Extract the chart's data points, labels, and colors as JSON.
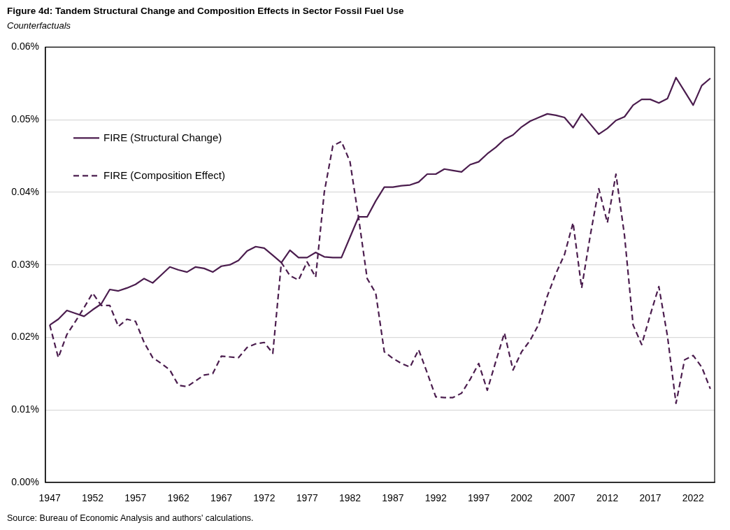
{
  "chart_data": {
    "type": "line",
    "title": "Figure 4d: Tandem Structural Change and Composition Effects in Sector Fossil Fuel Use",
    "subtitle": "Counterfactuals",
    "annotations": [
      "Source: Bureau of Economic Analysis and authors' calculations."
    ],
    "x": [
      1947,
      1948,
      1949,
      1950,
      1951,
      1952,
      1953,
      1954,
      1955,
      1956,
      1957,
      1958,
      1959,
      1960,
      1961,
      1962,
      1963,
      1964,
      1965,
      1966,
      1967,
      1968,
      1969,
      1970,
      1971,
      1972,
      1973,
      1974,
      1975,
      1976,
      1977,
      1978,
      1979,
      1980,
      1981,
      1982,
      1983,
      1984,
      1985,
      1986,
      1987,
      1988,
      1989,
      1990,
      1991,
      1992,
      1993,
      1994,
      1995,
      1996,
      1997,
      1998,
      1999,
      2000,
      2001,
      2002,
      2003,
      2004,
      2005,
      2006,
      2007,
      2008,
      2009,
      2010,
      2011,
      2012,
      2013,
      2014,
      2015,
      2016,
      2017,
      2018,
      2019,
      2020,
      2021,
      2022,
      2023,
      2024
    ],
    "series": [
      {
        "name": "FIRE (Structural Change)",
        "color": "#4b1d4e",
        "line_style": "solid",
        "values": [
          0.0217,
          0.0225,
          0.0237,
          0.0233,
          0.0229,
          0.0238,
          0.0246,
          0.0266,
          0.0264,
          0.0268,
          0.0273,
          0.0281,
          0.0275,
          0.0286,
          0.0297,
          0.0293,
          0.029,
          0.0297,
          0.0295,
          0.029,
          0.0298,
          0.03,
          0.0306,
          0.0319,
          0.0325,
          0.0323,
          0.0313,
          0.0303,
          0.032,
          0.031,
          0.031,
          0.0317,
          0.0311,
          0.031,
          0.031,
          0.0338,
          0.0366,
          0.0366,
          0.0388,
          0.0407,
          0.0407,
          0.0409,
          0.041,
          0.0414,
          0.0425,
          0.0425,
          0.0432,
          0.043,
          0.0428,
          0.0438,
          0.0442,
          0.0453,
          0.0462,
          0.0473,
          0.0479,
          0.049,
          0.0498,
          0.0503,
          0.0508,
          0.0506,
          0.0503,
          0.0489,
          0.0508,
          0.0494,
          0.048,
          0.0488,
          0.0499,
          0.0504,
          0.052,
          0.0528,
          0.0528,
          0.0523,
          0.0529,
          0.0558,
          0.0539,
          0.052,
          0.0547,
          0.0557
        ]
      },
      {
        "name": "FIRE (Composition Effect)",
        "color": "#4b1d4e",
        "line_style": "dashed",
        "values": [
          0.0217,
          0.0172,
          0.0204,
          0.0222,
          0.0241,
          0.0261,
          0.0244,
          0.0244,
          0.0215,
          0.0225,
          0.0222,
          0.0193,
          0.0172,
          0.0164,
          0.0155,
          0.0134,
          0.0132,
          0.014,
          0.0148,
          0.015,
          0.0174,
          0.0173,
          0.0172,
          0.0186,
          0.0191,
          0.0193,
          0.0178,
          0.0303,
          0.0285,
          0.0279,
          0.0304,
          0.0283,
          0.04,
          0.0464,
          0.047,
          0.0442,
          0.0365,
          0.0281,
          0.0261,
          0.018,
          0.0171,
          0.0164,
          0.0159,
          0.0183,
          0.0151,
          0.0118,
          0.0117,
          0.0117,
          0.0123,
          0.0142,
          0.0164,
          0.0127,
          0.0167,
          0.0206,
          0.0155,
          0.018,
          0.0196,
          0.0218,
          0.0257,
          0.0288,
          0.0314,
          0.0358,
          0.0268,
          0.034,
          0.0405,
          0.0358,
          0.0425,
          0.034,
          0.0217,
          0.019,
          0.0231,
          0.027,
          0.0202,
          0.0109,
          0.0169,
          0.0175,
          0.0159,
          0.0129
        ]
      }
    ],
    "xlim": [
      1946.5,
      2024.5
    ],
    "xticks": [
      1947,
      1952,
      1957,
      1962,
      1967,
      1972,
      1977,
      1982,
      1987,
      1992,
      1997,
      2002,
      2007,
      2012,
      2017,
      2022
    ],
    "ylim": [
      0,
      0.06
    ],
    "yticks": [
      {
        "value": 0,
        "label": "0.00%"
      },
      {
        "value": 0.01,
        "label": "0.01%"
      },
      {
        "value": 0.02,
        "label": "0.02%"
      },
      {
        "value": 0.03,
        "label": "0.03%"
      },
      {
        "value": 0.04,
        "label": "0.04%"
      },
      {
        "value": 0.05,
        "label": "0.05%"
      },
      {
        "value": 0.06,
        "label": "0.06%"
      }
    ],
    "grid": "y",
    "legend": "top left"
  }
}
